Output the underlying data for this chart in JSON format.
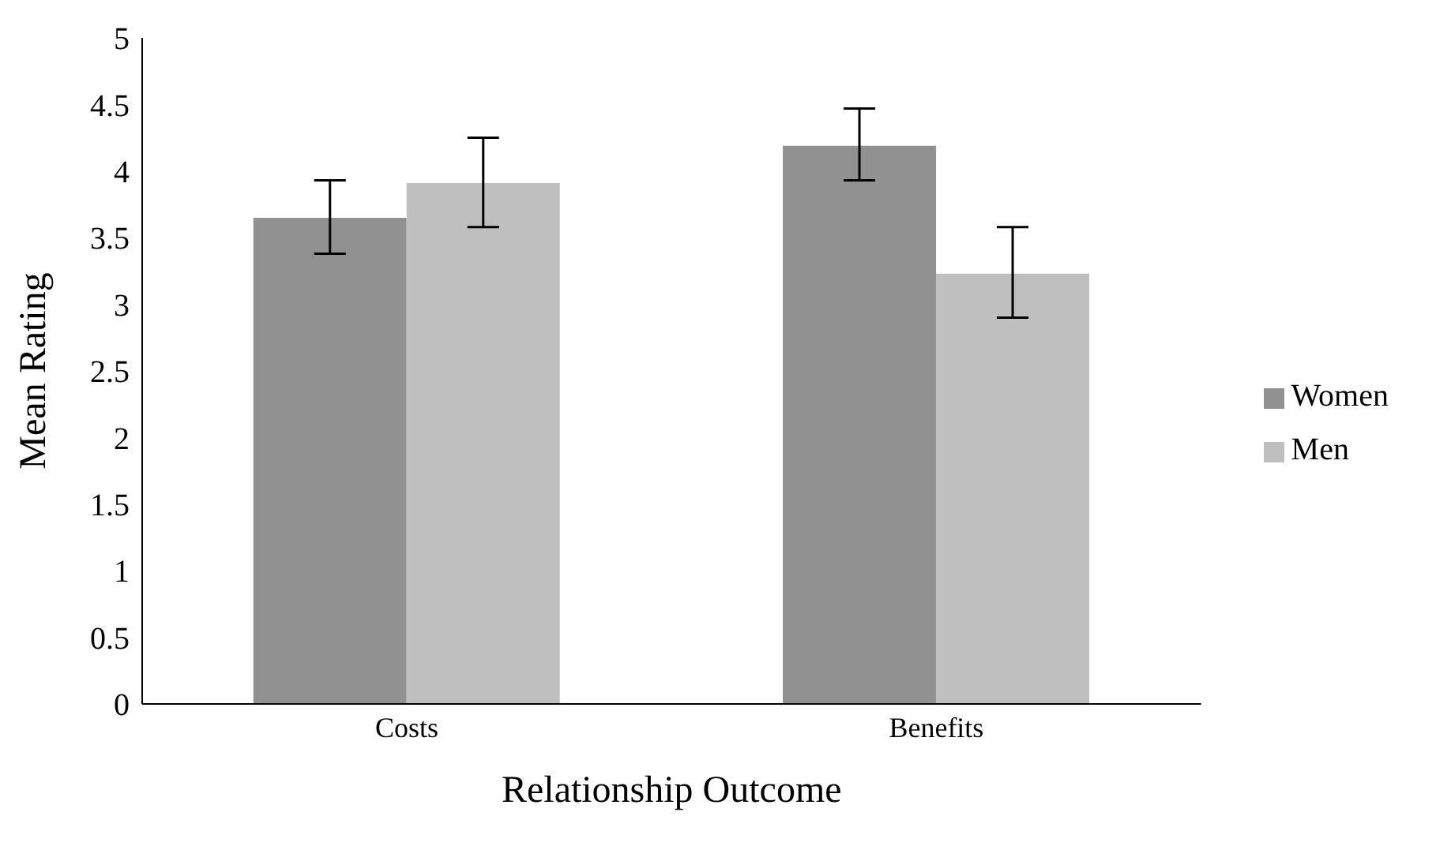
{
  "chart_data": {
    "type": "bar",
    "xlabel": "Relationship Outcome",
    "ylabel": "Mean Rating",
    "categories": [
      "Costs",
      "Benefits"
    ],
    "series": [
      {
        "name": "Women",
        "color": "#919191",
        "values": [
          3.65,
          4.19
        ],
        "errors": [
          [
            3.38,
            3.93
          ],
          [
            3.93,
            4.47
          ]
        ]
      },
      {
        "name": "Men",
        "color": "#bfbfbf",
        "values": [
          3.91,
          3.23
        ],
        "errors": [
          [
            3.58,
            4.25
          ],
          [
            2.9,
            3.58
          ]
        ]
      }
    ],
    "ylim": [
      0,
      5
    ],
    "yticks": [
      0,
      0.5,
      1,
      1.5,
      2,
      2.5,
      3,
      3.5,
      4,
      4.5,
      5
    ],
    "grid": false,
    "legend": "right"
  }
}
